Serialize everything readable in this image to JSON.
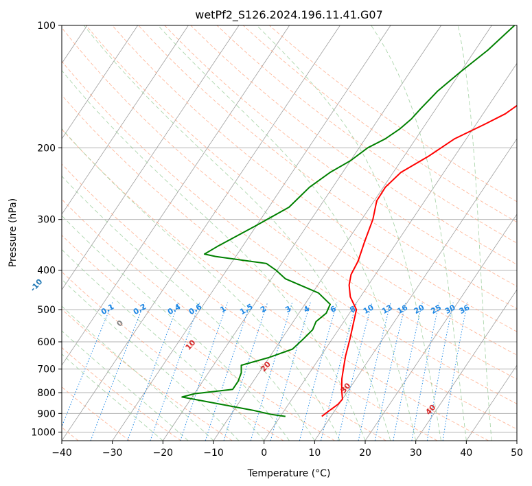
{
  "chart_data": {
    "type": "line",
    "title": "wetPf2_S126.2024.196.11.41.G07",
    "xlabel": "Temperature (°C)",
    "ylabel": "Pressure (hPa)",
    "xlim": [
      -40,
      50
    ],
    "ylim": [
      1050,
      100
    ],
    "y_scale": "log",
    "grid": true,
    "x_ticks": [
      -40,
      -30,
      -20,
      -10,
      0,
      10,
      20,
      30,
      40,
      50
    ],
    "y_ticks": [
      100,
      200,
      300,
      400,
      500,
      600,
      700,
      800,
      900,
      1000
    ],
    "skew": true,
    "series": [
      {
        "color": "#ff0000",
        "points": [
          [
            8.2,
            915
          ],
          [
            8.8,
            890
          ],
          [
            9.8,
            855
          ],
          [
            10,
            830
          ],
          [
            8.7,
            790
          ],
          [
            7.2,
            740
          ],
          [
            6.2,
            700
          ],
          [
            4.9,
            650
          ],
          [
            3.5,
            590
          ],
          [
            2.4,
            550
          ],
          [
            0.9,
            500
          ],
          [
            -2,
            465
          ],
          [
            -3.8,
            435
          ],
          [
            -4.8,
            410
          ],
          [
            -5.2,
            380
          ],
          [
            -6.5,
            340
          ],
          [
            -7.8,
            300
          ],
          [
            -9.5,
            270
          ],
          [
            -9.6,
            250
          ],
          [
            -8.5,
            230
          ],
          [
            -5.2,
            210
          ],
          [
            -2.3,
            190
          ],
          [
            1.7,
            175
          ],
          [
            4.4,
            165
          ],
          [
            6,
            155
          ],
          [
            7.5,
            145
          ],
          [
            8.6,
            135
          ],
          [
            9.2,
            125
          ],
          [
            10,
            115
          ],
          [
            11,
            105
          ],
          [
            11.5,
            100
          ]
        ]
      },
      {
        "color": "#008000",
        "points": [
          [
            1,
            915
          ],
          [
            -2,
            905
          ],
          [
            -6,
            885
          ],
          [
            -12,
            860
          ],
          [
            -22,
            820
          ],
          [
            -20,
            805
          ],
          [
            -13,
            785
          ],
          [
            -13,
            750
          ],
          [
            -13.5,
            715
          ],
          [
            -14.5,
            685
          ],
          [
            -10,
            655
          ],
          [
            -6.5,
            625
          ],
          [
            -5.7,
            590
          ],
          [
            -5.1,
            560
          ],
          [
            -5.5,
            535
          ],
          [
            -4.6,
            510
          ],
          [
            -5,
            485
          ],
          [
            -8.8,
            455
          ],
          [
            -17.2,
            420
          ],
          [
            -20.2,
            400
          ],
          [
            -23,
            385
          ],
          [
            -34,
            370
          ],
          [
            -36.5,
            365
          ],
          [
            -35,
            350
          ],
          [
            -30,
            310
          ],
          [
            -26,
            280
          ],
          [
            -24.6,
            250
          ],
          [
            -22.5,
            230
          ],
          [
            -20,
            215
          ],
          [
            -18.3,
            200
          ],
          [
            -16,
            190
          ],
          [
            -14.5,
            180
          ],
          [
            -13.5,
            170
          ],
          [
            -13,
            160
          ],
          [
            -12,
            145
          ],
          [
            -10,
            130
          ],
          [
            -7.5,
            115
          ],
          [
            -5.5,
            100
          ]
        ]
      }
    ],
    "dry_adiabats_theta_K": [
      -100,
      -90,
      -80,
      -70,
      -60,
      -50,
      -40,
      -30,
      -20,
      -10,
      0,
      10,
      20,
      30,
      40
    ],
    "mixing_ratios_gkg": [
      "0.1",
      "0.2",
      "0.4",
      "0.6",
      "1",
      "1.5",
      "2",
      "3",
      "4",
      "6",
      "8",
      "10",
      "13",
      "16",
      "20",
      "25",
      "30",
      "36"
    ],
    "iso_colors": {
      "isotherm": "#9e9e9e",
      "dry_adiabat": "#ffa07a",
      "moist_adiabat": "#90c890",
      "mixing_ratio": "#1e88e5",
      "theta_label_cold": "#1f77b4",
      "theta_label_zero": "#808080",
      "theta_label_warm": "#d62728"
    }
  }
}
